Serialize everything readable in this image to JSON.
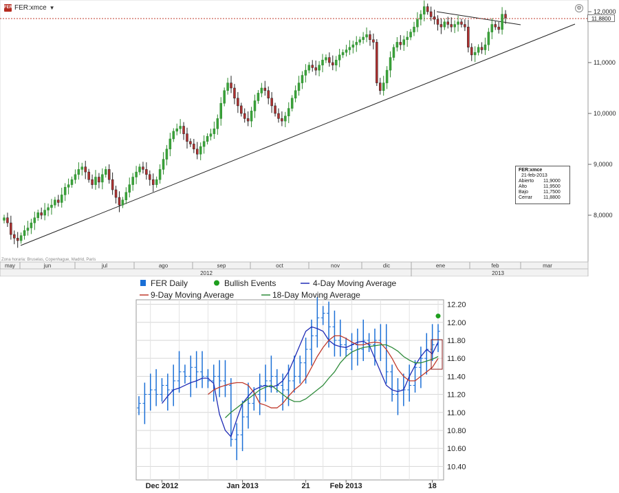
{
  "header": {
    "symbol": "FER:xmce",
    "badge": "FER"
  },
  "info_box": {
    "title": "FER:xmce",
    "date": "21-feb-2013",
    "rows": [
      {
        "label": "Abierto",
        "value": "11,9000"
      },
      {
        "label": "Alto",
        "value": "11,9500"
      },
      {
        "label": "Bajo",
        "value": "11,7500"
      },
      {
        "label": "Cerrar",
        "value": "11,8800"
      }
    ]
  },
  "price_flag": "11,8800",
  "timezone_note": "Zona horaria: Bruselas, Copenhague, Madrid, París",
  "chart_data": [
    {
      "type": "candlestick",
      "symbol": "FER:xmce",
      "y_ticks": [
        8.0,
        9.0,
        10.0,
        11.0,
        12.0
      ],
      "y_tick_labels": [
        "8,0000",
        "9,0000",
        "10,0000",
        "11,0000",
        "12,0000"
      ],
      "ylim": [
        7.2,
        12.2
      ],
      "month_labels": [
        "may",
        "jun",
        "jul",
        "ago",
        "sep",
        "oct",
        "nov",
        "dic",
        "ene",
        "feb",
        "mar"
      ],
      "year_labels": [
        "2012",
        "2013"
      ],
      "current_price": 11.88,
      "grid": false,
      "closes": [
        7.95,
        7.85,
        7.62,
        7.55,
        7.5,
        7.6,
        7.7,
        7.75,
        7.85,
        7.95,
        8.05,
        8.0,
        8.1,
        8.15,
        8.2,
        8.3,
        8.25,
        8.4,
        8.55,
        8.6,
        8.7,
        8.8,
        8.9,
        8.95,
        8.85,
        8.7,
        8.6,
        8.75,
        8.65,
        8.8,
        8.9,
        8.7,
        8.5,
        8.35,
        8.2,
        8.3,
        8.45,
        8.6,
        8.75,
        8.85,
        8.95,
        8.9,
        8.8,
        8.7,
        8.6,
        8.7,
        8.9,
        9.1,
        9.3,
        9.5,
        9.65,
        9.7,
        9.75,
        9.6,
        9.45,
        9.4,
        9.3,
        9.2,
        9.35,
        9.45,
        9.55,
        9.6,
        9.7,
        9.9,
        10.2,
        10.45,
        10.6,
        10.5,
        10.3,
        10.15,
        10.0,
        9.9,
        9.85,
        10.05,
        10.25,
        10.4,
        10.5,
        10.45,
        10.3,
        10.15,
        10.0,
        9.9,
        9.85,
        9.95,
        10.1,
        10.3,
        10.45,
        10.6,
        10.75,
        10.85,
        10.95,
        10.9,
        10.85,
        10.95,
        11.05,
        11.1,
        11.0,
        10.95,
        11.05,
        11.15,
        11.2,
        11.25,
        11.3,
        11.35,
        11.4,
        11.45,
        11.5,
        11.55,
        11.45,
        11.4,
        10.6,
        10.45,
        10.6,
        10.85,
        11.1,
        11.3,
        11.4,
        11.35,
        11.45,
        11.5,
        11.6,
        11.7,
        11.85,
        11.95,
        12.1,
        12.0,
        11.9,
        11.85,
        11.75,
        11.7,
        11.8,
        11.75,
        11.7,
        11.75,
        11.8,
        11.75,
        11.7,
        11.3,
        11.15,
        11.2,
        11.3,
        11.25,
        11.35,
        11.6,
        11.75,
        11.7,
        11.65,
        11.95,
        11.88
      ]
    },
    {
      "type": "line",
      "title": "",
      "y_ticks": [
        10.4,
        10.6,
        10.8,
        11.0,
        11.2,
        11.4,
        11.6,
        11.8,
        12.0,
        12.2
      ],
      "y_tick_labels": [
        "10.40",
        "10.60",
        "10.80",
        "11.00",
        "11.20",
        "11.40",
        "11.60",
        "11.80",
        "12.00",
        "12.20"
      ],
      "ylim": [
        10.25,
        12.25
      ],
      "x_labels": [
        "Dec 2012",
        "Jan 2013",
        "21",
        "Feb 2013",
        "18"
      ],
      "grid": true,
      "legend": [
        "FER Daily",
        "Bullish Events",
        "4-Day Moving Average",
        "9-Day Moving Average",
        "18-Day Moving Average"
      ],
      "series": [
        {
          "name": "FER Daily",
          "color": "#1a6fd6",
          "values": [
            11.1,
            11.2,
            11.25,
            11.2,
            11.3,
            11.25,
            11.35,
            11.45,
            11.4,
            11.5,
            11.45,
            11.4,
            11.35,
            11.4,
            11.35,
            11.3,
            10.7,
            10.75,
            10.95,
            11.1,
            11.2,
            11.3,
            11.35,
            11.4,
            11.3,
            11.25,
            11.35,
            11.4,
            11.55,
            11.7,
            11.85,
            12.05,
            12.1,
            11.95,
            11.8,
            11.75,
            11.7,
            11.75,
            11.7,
            11.8,
            11.75,
            11.8,
            11.75,
            11.45,
            11.2,
            11.25,
            11.25,
            11.3,
            11.5,
            11.6,
            11.7,
            11.75,
            11.9
          ]
        },
        {
          "name": "4-Day Moving Average",
          "color": "#1f2bb5",
          "values": [
            11.1,
            11.18,
            11.25,
            11.27,
            11.3,
            11.33,
            11.35,
            11.38,
            11.38,
            11.32,
            10.98,
            10.8,
            10.73,
            10.92,
            11.1,
            11.18,
            11.25,
            11.28,
            11.3,
            11.28,
            11.3,
            11.35,
            11.45,
            11.6,
            11.75,
            11.9,
            11.95,
            11.93,
            11.9,
            11.8,
            11.75,
            11.73,
            11.72,
            11.75,
            11.78,
            11.79,
            11.75,
            11.6,
            11.45,
            11.3,
            11.25,
            11.23,
            11.25,
            11.4,
            11.52,
            11.62,
            11.7,
            11.65,
            11.78
          ]
        },
        {
          "name": "9-Day Moving Average",
          "color": "#c0392b",
          "values": [
            11.2,
            11.25,
            11.28,
            11.3,
            11.32,
            11.33,
            11.33,
            11.3,
            11.22,
            11.1,
            11.08,
            11.05,
            11.05,
            11.1,
            11.18,
            11.25,
            11.3,
            11.38,
            11.5,
            11.62,
            11.72,
            11.8,
            11.85,
            11.85,
            11.82,
            11.78,
            11.75,
            11.75,
            11.77,
            11.78,
            11.77,
            11.7,
            11.6,
            11.48,
            11.4,
            11.35,
            11.35,
            11.4,
            11.45,
            11.5,
            11.6
          ]
        },
        {
          "name": "18-Day Moving Average",
          "color": "#2e8b3a",
          "values": [
            10.94,
            11.0,
            11.05,
            11.1,
            11.15,
            11.2,
            11.25,
            11.28,
            11.3,
            11.25,
            11.2,
            11.15,
            11.12,
            11.12,
            11.15,
            11.2,
            11.25,
            11.3,
            11.38,
            11.45,
            11.55,
            11.62,
            11.67,
            11.7,
            11.72,
            11.73,
            11.74,
            11.75,
            11.75,
            11.72,
            11.68,
            11.62,
            11.58,
            11.55,
            11.55,
            11.57,
            11.59,
            11.62
          ]
        }
      ],
      "bullish_event": {
        "name": "Bullish Events",
        "color": "#1e9e1e",
        "value": 12.07
      }
    }
  ]
}
